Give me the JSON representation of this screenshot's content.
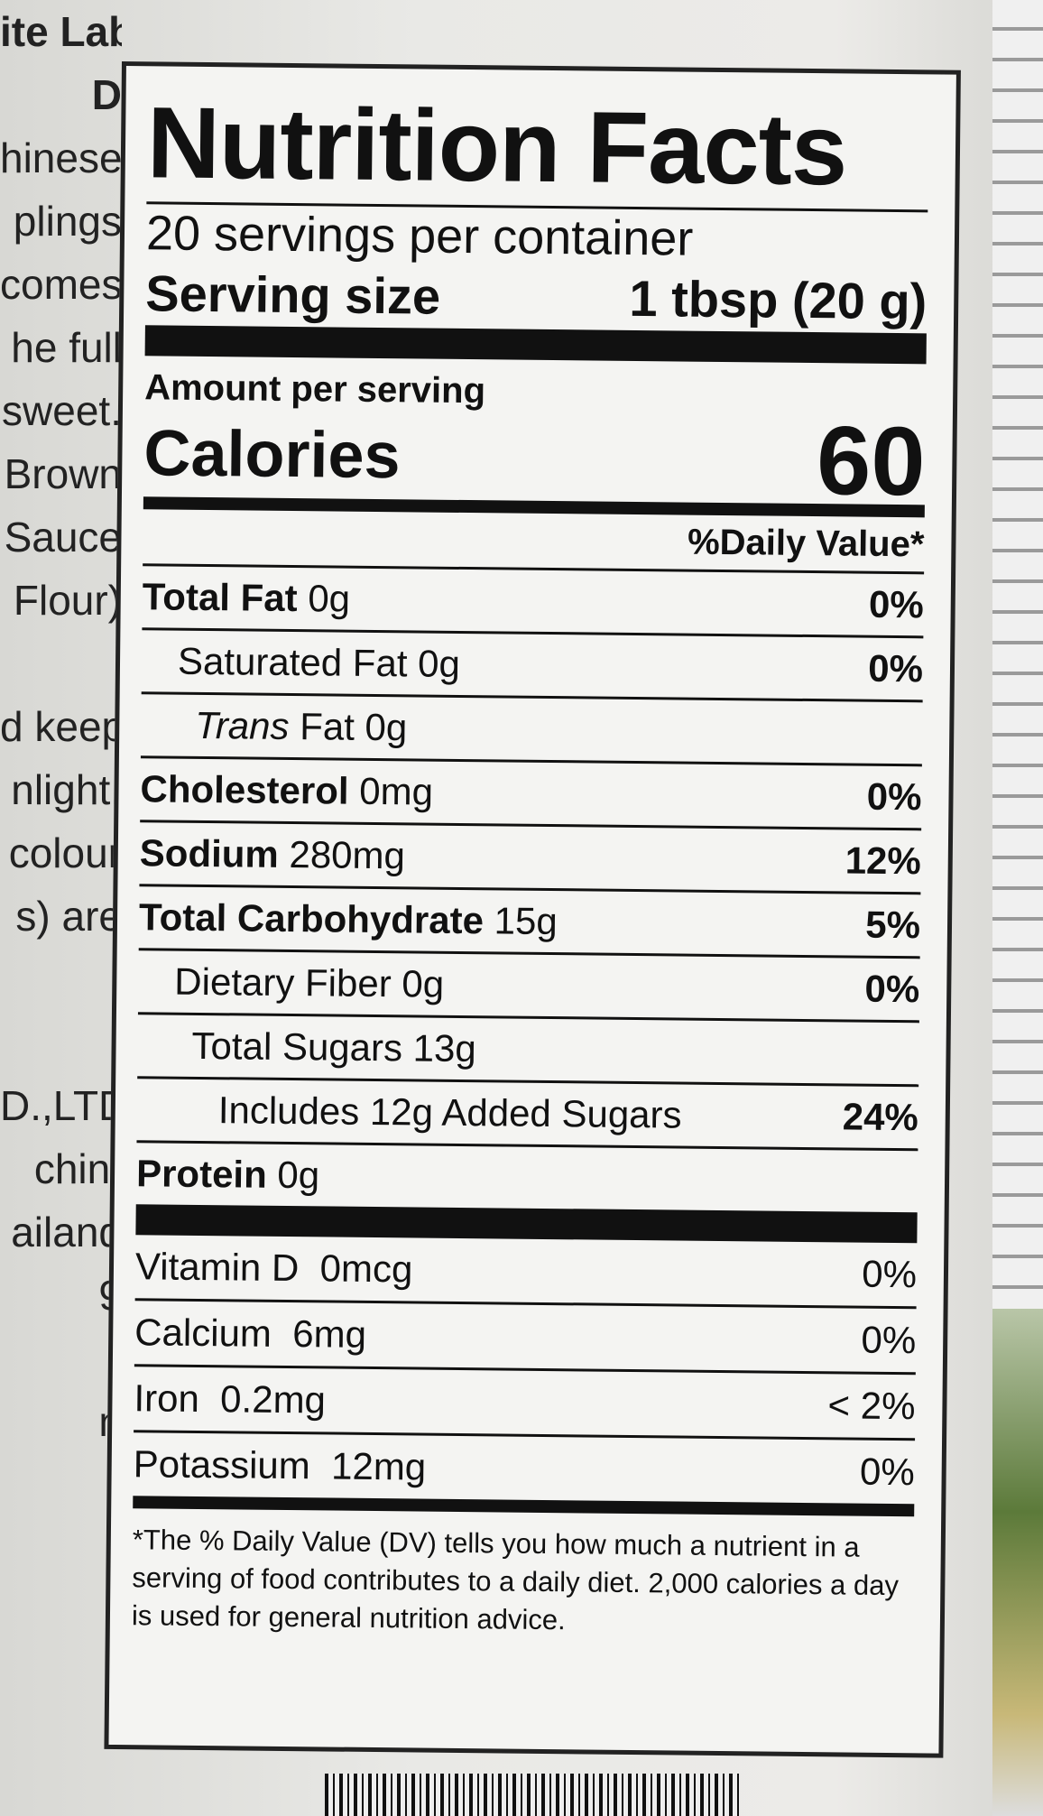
{
  "side_text": [
    "ite Label)",
    "D",
    "hinese",
    "plings",
    "comes",
    "he full",
    "sweet.",
    "Brown",
    "Sauce",
    "Flour)",
    "",
    "d keep",
    "nlight.",
    "colour",
    "s) are",
    "",
    ".",
    "D.,LTD.",
    "chin,",
    "ailand",
    "9",
    "",
    "n"
  ],
  "label": {
    "title": "Nutrition Facts",
    "servings": "20 servings per container",
    "serving_size_label": "Serving size",
    "serving_size_value": "1 tbsp (20 g)",
    "amount_per_serving": "Amount per serving",
    "calories_label": "Calories",
    "calories_value": "60",
    "dv_header": "%Daily Value*",
    "nutrients": [
      {
        "name": "Total Fat",
        "amount": "0g",
        "dv": "0%"
      },
      {
        "name": "Saturated Fat",
        "amount": "0g",
        "dv": "0%"
      },
      {
        "name": "Trans",
        "name_rest": "Fat",
        "amount": "0g",
        "dv": ""
      },
      {
        "name": "Cholesterol",
        "amount": "0mg",
        "dv": "0%"
      },
      {
        "name": "Sodium",
        "amount": "280mg",
        "dv": "12%"
      },
      {
        "name": "Total Carbohydrate",
        "amount": "15g",
        "dv": "5%"
      },
      {
        "name": "Dietary Fiber",
        "amount": "0g",
        "dv": "0%"
      },
      {
        "name": "Total Sugars",
        "amount": "13g",
        "dv": ""
      },
      {
        "name": "Includes",
        "amount": "12g Added Sugars",
        "dv": "24%"
      },
      {
        "name": "Protein",
        "amount": "0g",
        "dv": ""
      }
    ],
    "vitamins": [
      {
        "name": "Vitamin D",
        "amount": "0mcg",
        "dv": "0%"
      },
      {
        "name": "Calcium",
        "amount": "6mg",
        "dv": "0%"
      },
      {
        "name": "Iron",
        "amount": "0.2mg",
        "dv": "< 2%"
      },
      {
        "name": "Potassium",
        "amount": "12mg",
        "dv": "0%"
      }
    ],
    "footnote": "*The % Daily Value (DV) tells you how much a nutrient in a serving of food contributes to a daily diet. 2,000 calories a day is used for general nutrition advice."
  }
}
